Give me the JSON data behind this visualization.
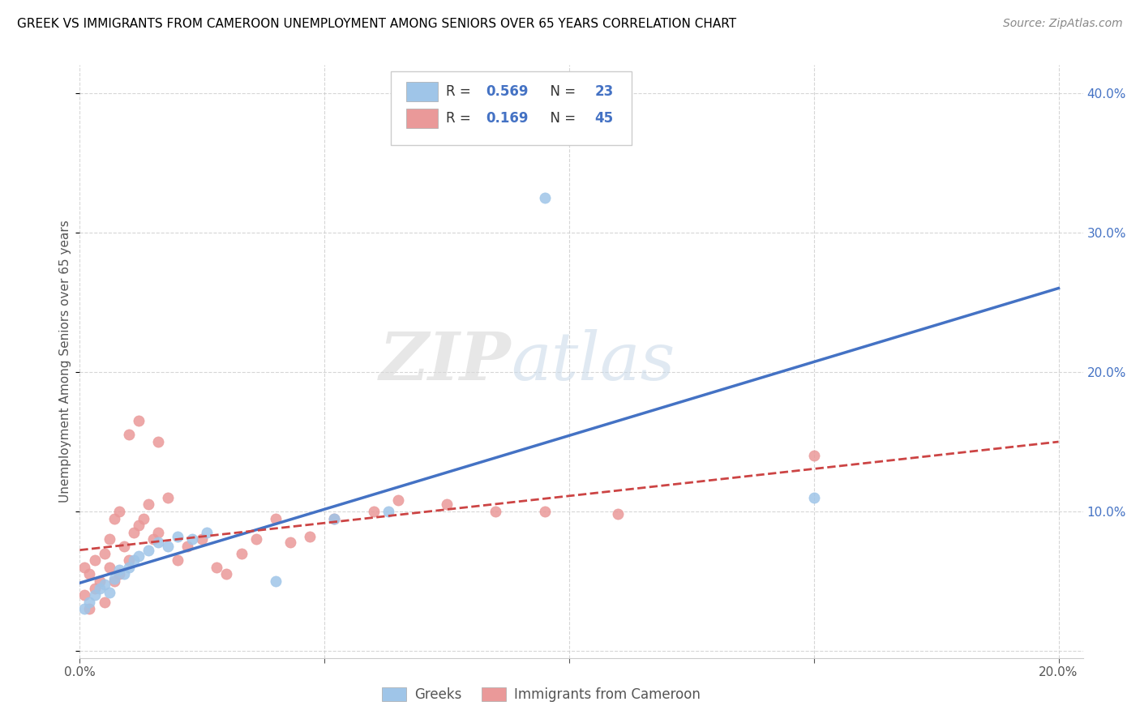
{
  "title": "GREEK VS IMMIGRANTS FROM CAMEROON UNEMPLOYMENT AMONG SENIORS OVER 65 YEARS CORRELATION CHART",
  "source": "Source: ZipAtlas.com",
  "ylabel": "Unemployment Among Seniors over 65 years",
  "xlim": [
    0.0,
    0.205
  ],
  "ylim": [
    -0.005,
    0.42
  ],
  "greek_R": "0.569",
  "greek_N": "23",
  "cameroon_R": "0.169",
  "cameroon_N": "45",
  "greek_color": "#9fc5e8",
  "cameroon_color": "#ea9999",
  "greek_line_color": "#4472c4",
  "cameroon_line_color": "#cc4444",
  "watermark_zip": "ZIP",
  "watermark_atlas": "atlas",
  "legend_label_greek": "Greeks",
  "legend_label_cameroon": "Immigrants from Cameroon",
  "grid_color": "#cccccc",
  "greek_scatter_x": [
    0.001,
    0.002,
    0.003,
    0.004,
    0.005,
    0.006,
    0.007,
    0.008,
    0.009,
    0.01,
    0.011,
    0.012,
    0.014,
    0.016,
    0.018,
    0.02,
    0.023,
    0.026,
    0.04,
    0.052,
    0.063,
    0.095,
    0.15
  ],
  "greek_scatter_y": [
    0.03,
    0.035,
    0.04,
    0.045,
    0.048,
    0.042,
    0.052,
    0.058,
    0.055,
    0.06,
    0.065,
    0.068,
    0.072,
    0.078,
    0.075,
    0.082,
    0.08,
    0.085,
    0.05,
    0.095,
    0.1,
    0.325,
    0.11
  ],
  "cameroon_scatter_x": [
    0.001,
    0.001,
    0.002,
    0.002,
    0.003,
    0.003,
    0.004,
    0.005,
    0.005,
    0.006,
    0.006,
    0.007,
    0.007,
    0.008,
    0.008,
    0.009,
    0.01,
    0.01,
    0.011,
    0.012,
    0.012,
    0.013,
    0.014,
    0.015,
    0.016,
    0.016,
    0.018,
    0.02,
    0.022,
    0.025,
    0.028,
    0.03,
    0.033,
    0.036,
    0.04,
    0.043,
    0.047,
    0.052,
    0.06,
    0.065,
    0.075,
    0.085,
    0.095,
    0.11,
    0.15
  ],
  "cameroon_scatter_y": [
    0.04,
    0.06,
    0.03,
    0.055,
    0.045,
    0.065,
    0.05,
    0.035,
    0.07,
    0.06,
    0.08,
    0.05,
    0.095,
    0.055,
    0.1,
    0.075,
    0.065,
    0.155,
    0.085,
    0.09,
    0.165,
    0.095,
    0.105,
    0.08,
    0.085,
    0.15,
    0.11,
    0.065,
    0.075,
    0.08,
    0.06,
    0.055,
    0.07,
    0.08,
    0.095,
    0.078,
    0.082,
    0.095,
    0.1,
    0.108,
    0.105,
    0.1,
    0.1,
    0.098,
    0.14
  ]
}
